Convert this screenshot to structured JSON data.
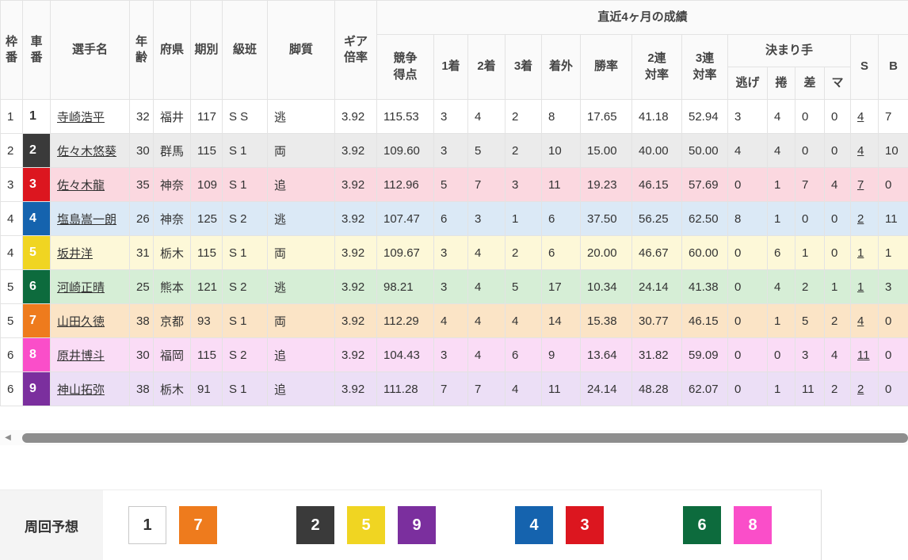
{
  "table": {
    "group_header": "直近4ヶ月の成績",
    "headers": {
      "waku": "枠\n番",
      "car": "車\n番",
      "name": "選手名",
      "age": "年\n齢",
      "pref": "府県",
      "term": "期別",
      "grade": "級班",
      "style": "脚質",
      "gear": "ギア\n倍率",
      "points": "競争\n得点",
      "first": "1着",
      "second": "2着",
      "third": "3着",
      "out": "着外",
      "win": "勝率",
      "q2": "2連\n対率",
      "q3": "3連\n対率",
      "kimarite": "決まり手",
      "nige": "逃げ",
      "maku": "捲",
      "sashi": "差",
      "mark": "マ",
      "s": "S",
      "b": "B"
    },
    "rows": [
      {
        "waku": "1",
        "car": "1",
        "name": "寺崎浩平",
        "age": "32",
        "pref": "福井",
        "term": "117",
        "grade": "S S",
        "style": "逃",
        "gear": "3.92",
        "points": "115.53",
        "first": "3",
        "second": "4",
        "third": "2",
        "out": "8",
        "win": "17.65",
        "q2": "41.18",
        "q3": "52.94",
        "nige": "3",
        "maku": "4",
        "sashi": "0",
        "mark": "0",
        "s": "4",
        "b": "7"
      },
      {
        "waku": "2",
        "car": "2",
        "name": "佐々木悠葵",
        "age": "30",
        "pref": "群馬",
        "term": "115",
        "grade": "S 1",
        "style": "両",
        "gear": "3.92",
        "points": "109.60",
        "first": "3",
        "second": "5",
        "third": "2",
        "out": "10",
        "win": "15.00",
        "q2": "40.00",
        "q3": "50.00",
        "nige": "4",
        "maku": "4",
        "sashi": "0",
        "mark": "0",
        "s": "4",
        "b": "10"
      },
      {
        "waku": "3",
        "car": "3",
        "name": "佐々木龍",
        "age": "35",
        "pref": "神奈",
        "term": "109",
        "grade": "S 1",
        "style": "追",
        "gear": "3.92",
        "points": "112.96",
        "first": "5",
        "second": "7",
        "third": "3",
        "out": "11",
        "win": "19.23",
        "q2": "46.15",
        "q3": "57.69",
        "nige": "0",
        "maku": "1",
        "sashi": "7",
        "mark": "4",
        "s": "7",
        "b": "0"
      },
      {
        "waku": "4",
        "car": "4",
        "name": "塩島嵩一朗",
        "age": "26",
        "pref": "神奈",
        "term": "125",
        "grade": "S 2",
        "style": "逃",
        "gear": "3.92",
        "points": "107.47",
        "first": "6",
        "second": "3",
        "third": "1",
        "out": "6",
        "win": "37.50",
        "q2": "56.25",
        "q3": "62.50",
        "nige": "8",
        "maku": "1",
        "sashi": "0",
        "mark": "0",
        "s": "2",
        "b": "11"
      },
      {
        "waku": "4",
        "car": "5",
        "name": "坂井洋",
        "age": "31",
        "pref": "栃木",
        "term": "115",
        "grade": "S 1",
        "style": "両",
        "gear": "3.92",
        "points": "109.67",
        "first": "3",
        "second": "4",
        "third": "2",
        "out": "6",
        "win": "20.00",
        "q2": "46.67",
        "q3": "60.00",
        "nige": "0",
        "maku": "6",
        "sashi": "1",
        "mark": "0",
        "s": "1",
        "b": "1"
      },
      {
        "waku": "5",
        "car": "6",
        "name": "河崎正晴",
        "age": "25",
        "pref": "熊本",
        "term": "121",
        "grade": "S 2",
        "style": "逃",
        "gear": "3.92",
        "points": "98.21",
        "first": "3",
        "second": "4",
        "third": "5",
        "out": "17",
        "win": "10.34",
        "q2": "24.14",
        "q3": "41.38",
        "nige": "0",
        "maku": "4",
        "sashi": "2",
        "mark": "1",
        "s": "1",
        "b": "3"
      },
      {
        "waku": "5",
        "car": "7",
        "name": "山田久徳",
        "age": "38",
        "pref": "京都",
        "term": "93",
        "grade": "S 1",
        "style": "両",
        "gear": "3.92",
        "points": "112.29",
        "first": "4",
        "second": "4",
        "third": "4",
        "out": "14",
        "win": "15.38",
        "q2": "30.77",
        "q3": "46.15",
        "nige": "0",
        "maku": "1",
        "sashi": "5",
        "mark": "2",
        "s": "4",
        "b": "0"
      },
      {
        "waku": "6",
        "car": "8",
        "name": "原井博斗",
        "age": "30",
        "pref": "福岡",
        "term": "115",
        "grade": "S 2",
        "style": "追",
        "gear": "3.92",
        "points": "104.43",
        "first": "3",
        "second": "4",
        "third": "6",
        "out": "9",
        "win": "13.64",
        "q2": "31.82",
        "q3": "59.09",
        "nige": "0",
        "maku": "0",
        "sashi": "3",
        "mark": "4",
        "s": "11",
        "b": "0"
      },
      {
        "waku": "6",
        "car": "9",
        "name": "神山拓弥",
        "age": "38",
        "pref": "栃木",
        "term": "91",
        "grade": "S 1",
        "style": "追",
        "gear": "3.92",
        "points": "111.28",
        "first": "7",
        "second": "7",
        "third": "4",
        "out": "11",
        "win": "24.14",
        "q2": "48.28",
        "q3": "62.07",
        "nige": "0",
        "maku": "1",
        "sashi": "11",
        "mark": "2",
        "s": "2",
        "b": "0"
      }
    ],
    "row_colors": [
      "#ffffff",
      "#ebebeb",
      "#fbd8e0",
      "#dbe9f6",
      "#fdf8d8",
      "#d6eed6",
      "#fbe4c6",
      "#fadcf6",
      "#ecdff6"
    ]
  },
  "car_colors": {
    "1": {
      "bg": "#ffffff",
      "fg": "#333333",
      "border": "#c8c8c8"
    },
    "2": {
      "bg": "#3a3a3a",
      "fg": "#ffffff"
    },
    "3": {
      "bg": "#dc161f",
      "fg": "#ffffff"
    },
    "4": {
      "bg": "#1563ae",
      "fg": "#ffffff"
    },
    "5": {
      "bg": "#f0d522",
      "fg": "#ffffff"
    },
    "6": {
      "bg": "#0d6b3d",
      "fg": "#ffffff"
    },
    "7": {
      "bg": "#ee7b1d",
      "fg": "#ffffff"
    },
    "8": {
      "bg": "#fa4ec9",
      "fg": "#ffffff"
    },
    "9": {
      "bg": "#7b2f9e",
      "fg": "#ffffff"
    }
  },
  "scrollbar": {
    "left_arrow": "◀"
  },
  "lap_prediction": {
    "label": "周回予想",
    "groups": [
      [
        "1",
        "7"
      ],
      [
        "2",
        "5",
        "9"
      ],
      [
        "4",
        "3"
      ],
      [
        "6",
        "8"
      ]
    ]
  }
}
